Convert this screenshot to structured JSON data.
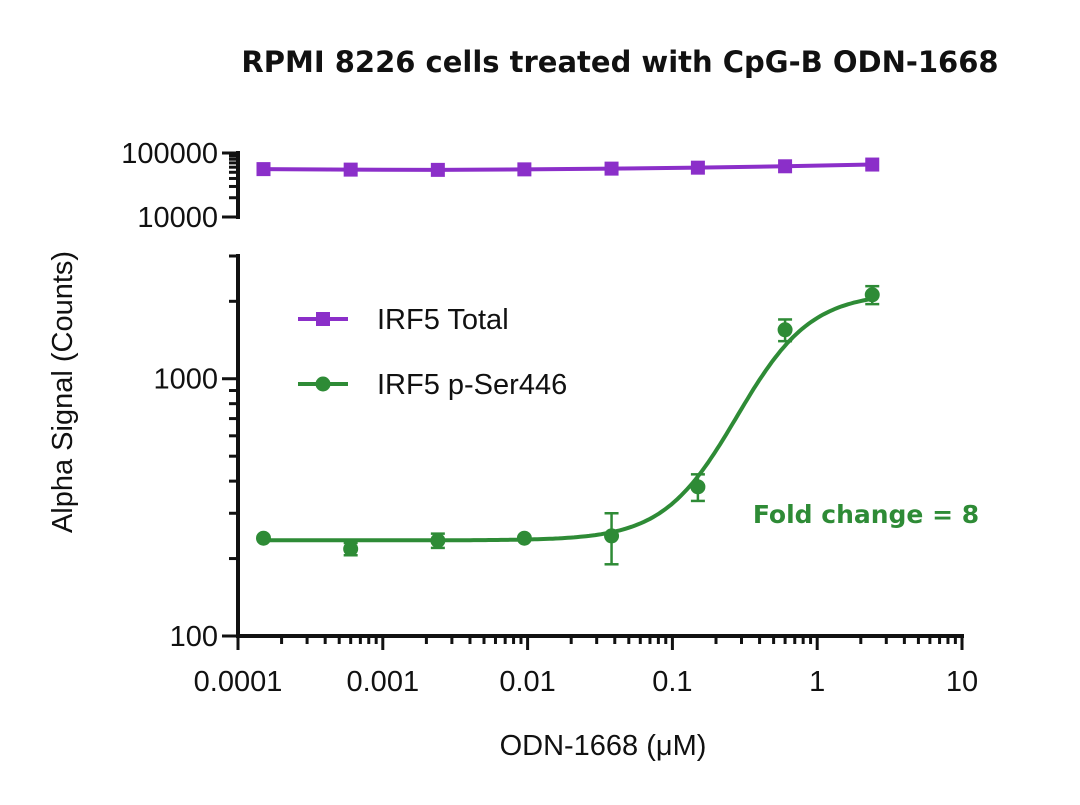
{
  "chart_data": {
    "type": "scatter",
    "title": "RPMI 8226 cells treated with CpG-B ODN-1668",
    "xlabel": "ODN-1668 (μM)",
    "ylabel": "Alpha Signal (Counts)",
    "x_scale": "log",
    "y_scale": "log",
    "xlim": [
      0.0001,
      10
    ],
    "x_ticks": [
      "0.0001",
      "0.001",
      "0.01",
      "0.1",
      "1",
      "10"
    ],
    "y_axis_broken": true,
    "y_lower_segment": {
      "ylim": [
        100,
        3000
      ],
      "ticks": [
        "100",
        "1000"
      ]
    },
    "y_upper_segment": {
      "ylim": [
        10000,
        100000
      ],
      "ticks": [
        "10000",
        "100000"
      ]
    },
    "legend_position": "upper-left",
    "series": [
      {
        "name": "IRF5 Total",
        "color": "#8B2FC9",
        "marker": "square",
        "x": [
          0.00015,
          0.0006,
          0.0024,
          0.0095,
          0.038,
          0.15,
          0.6,
          2.4
        ],
        "y": [
          56000,
          55000,
          54500,
          55500,
          57000,
          59000,
          62000,
          66000
        ]
      },
      {
        "name": "IRF5 p-Ser446",
        "color": "#2E8B36",
        "marker": "circle",
        "fit": "sigmoidal",
        "x": [
          0.00015,
          0.0006,
          0.0024,
          0.0095,
          0.038,
          0.15,
          0.6,
          2.4
        ],
        "y": [
          240,
          218,
          235,
          240,
          245,
          380,
          1550,
          2120
        ],
        "error": [
          0,
          12,
          15,
          0,
          55,
          45,
          150,
          170
        ]
      }
    ],
    "annotations": [
      {
        "text": "Fold change = 8",
        "color": "#2E8B36"
      }
    ]
  }
}
